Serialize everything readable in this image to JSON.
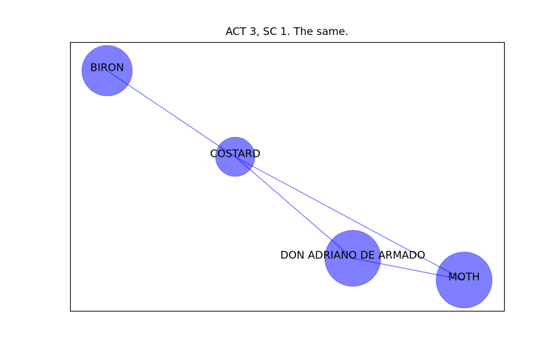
{
  "title": "ACT 3, SC 1. The same.",
  "colors": {
    "node": "#0000ff",
    "edge": "#0000ff",
    "frame": "#000000"
  },
  "nodes": [
    {
      "id": "biron",
      "label": "BIRON",
      "size": "medium"
    },
    {
      "id": "costard",
      "label": "COSTARD",
      "size": "small"
    },
    {
      "id": "armado",
      "label": "DON ADRIANO DE ARMADO",
      "size": "large"
    },
    {
      "id": "moth",
      "label": "MOTH",
      "size": "large"
    }
  ],
  "edges": [
    {
      "source": "biron",
      "target": "costard"
    },
    {
      "source": "costard",
      "target": "armado"
    },
    {
      "source": "costard",
      "target": "moth"
    },
    {
      "source": "armado",
      "target": "moth"
    }
  ]
}
